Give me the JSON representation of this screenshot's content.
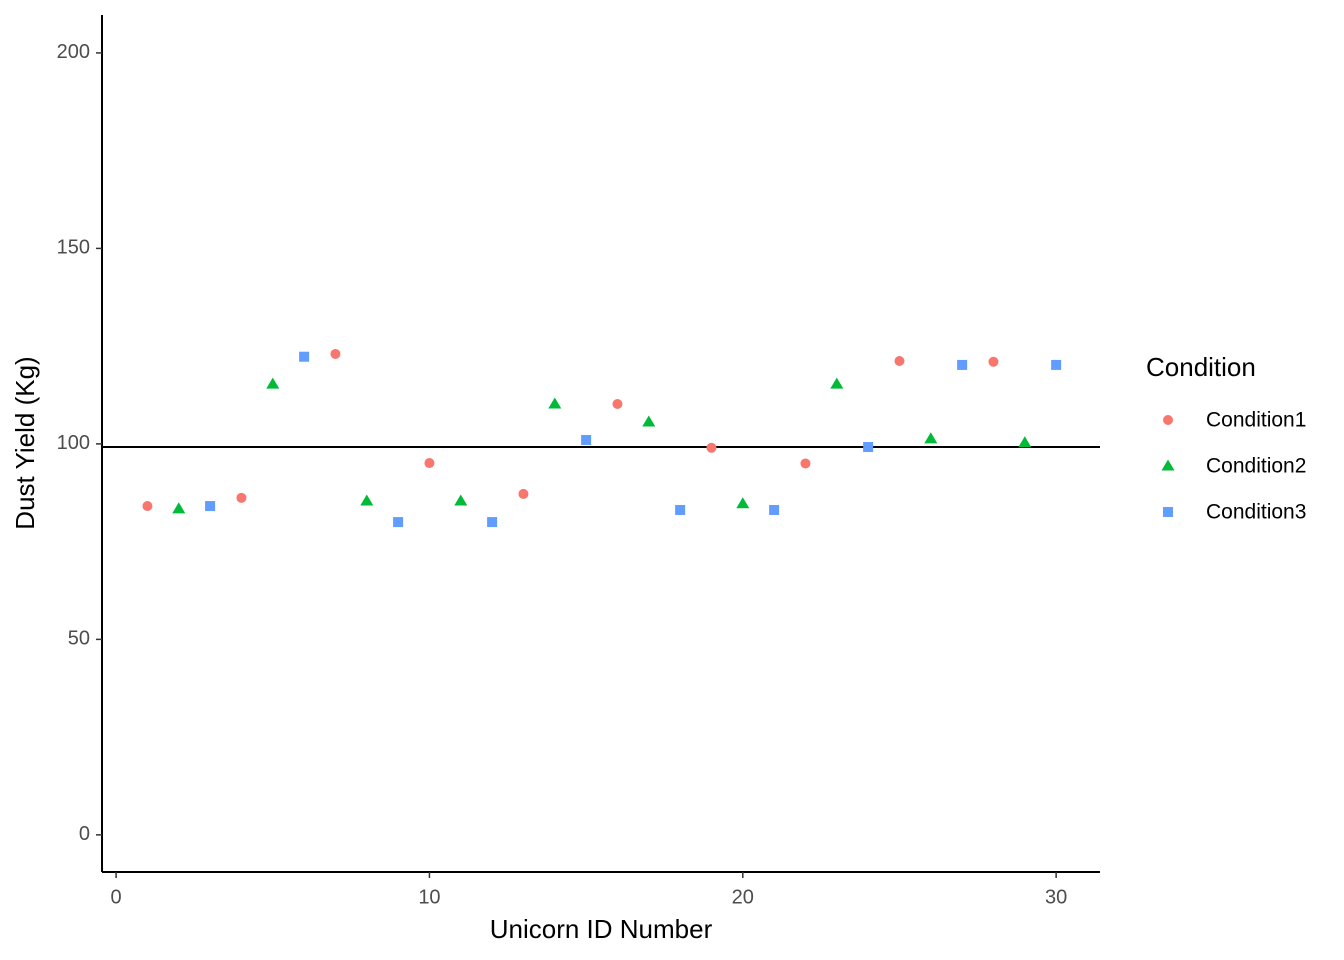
{
  "chart_data": {
    "type": "scatter",
    "x_label": "Unicorn ID Number",
    "y_label": "Dust Yield (Kg)",
    "legend_title": "Condition",
    "legend_position": "right",
    "grid": false,
    "xlim": [
      -0.45,
      31.4
    ],
    "ylim": [
      -9.5,
      209.7
    ],
    "xticks": [
      0,
      10,
      20,
      30
    ],
    "yticks": [
      0,
      50,
      100,
      150,
      200
    ],
    "hline": 99.2,
    "series": [
      {
        "name": "Condition1",
        "color": "#F8766D",
        "shape": "circle",
        "x": [
          1,
          4,
          7,
          10,
          13,
          16,
          19,
          22,
          25,
          28
        ],
        "values": [
          84.1,
          86.2,
          123,
          95.1,
          87.2,
          110.2,
          99,
          95,
          121.2,
          121
        ]
      },
      {
        "name": "Condition2",
        "color": "#00BA38",
        "shape": "triangle",
        "x": [
          2,
          5,
          8,
          11,
          14,
          17,
          20,
          23,
          26,
          29
        ],
        "values": [
          83.4,
          115.3,
          85.4,
          85.4,
          110.2,
          105.6,
          84.7,
          115.3,
          101.3,
          100.3
        ]
      },
      {
        "name": "Condition3",
        "color": "#619CFF",
        "shape": "square",
        "x": [
          3,
          6,
          9,
          12,
          15,
          18,
          21,
          24,
          27,
          30
        ],
        "values": [
          84.1,
          122.3,
          80,
          80,
          101,
          83.1,
          83.1,
          99.2,
          120.2,
          120.2
        ]
      }
    ]
  }
}
